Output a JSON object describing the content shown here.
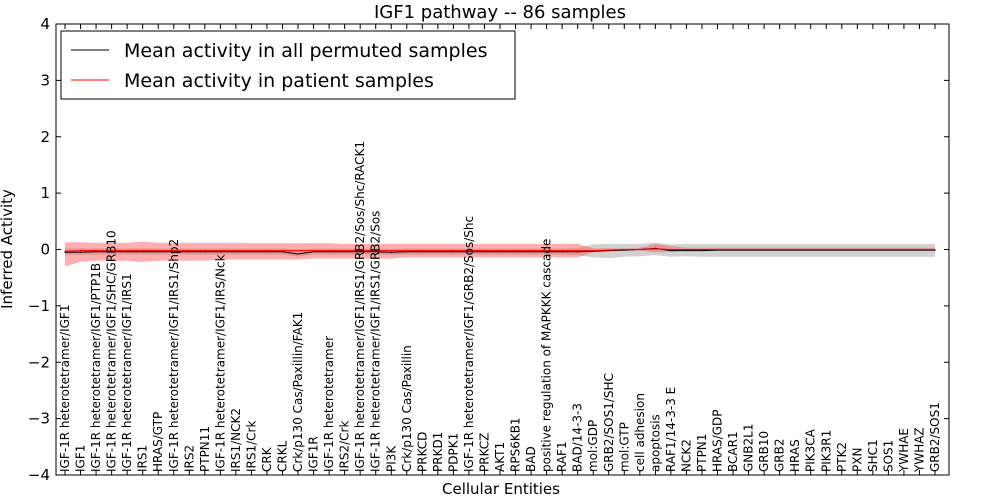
{
  "chart_data": {
    "type": "line",
    "title": "IGF1 pathway -- 86 samples",
    "xlabel": "Cellular Entities",
    "ylabel": "Inferred Activity",
    "ylim": [
      -4,
      4
    ],
    "yticks": [
      -4,
      -3,
      -2,
      -1,
      0,
      1,
      2,
      3,
      4
    ],
    "ytick_labels": [
      "−4",
      "−3",
      "−2",
      "−1",
      "0",
      "1",
      "2",
      "3",
      "4"
    ],
    "legend": {
      "position": "top-left",
      "entries": [
        {
          "label": "Mean activity in all permuted samples",
          "color": "#000000"
        },
        {
          "label": "Mean activity in patient samples",
          "color": "#ff0000"
        }
      ]
    },
    "categories": [
      "IGF-1R heterotetramer/IGF1",
      "IGF1",
      "IGF-1R heterotetramer/IGF1/PTP1B",
      "IGF-1R heterotetramer/IGF1/SHC/GRB10",
      "IGF-1R heterotetramer/IGF1/IRS1",
      "IRS1",
      "HRAS/GTP",
      "IGF-1R heterotetramer/IGF1/IRS1/Shp2",
      "IRS2",
      "PTPN11",
      "IGF-1R heterotetramer/IGF1/IRS/Nck",
      "IRS1/NCK2",
      "IRS1/Crk",
      "CRK",
      "CRKL",
      "Crk/p130 Cas/Paxillin/FAK1",
      "IGF1R",
      "IGF-1R heterotetramer",
      "IRS2/Crk",
      "IGF-1R heterotetramer/IGF1/IRS1/GRB2/Sos/Shc/RACK1",
      "IGF-1R heterotetramer/IGF1/IRS1/GRB2/Sos",
      "PI3K",
      "Crk/p130 Cas/Paxillin",
      "PRKCD",
      "PRKD1",
      "PDPK1",
      "IGF-1R heterotetramer/IGF1/GRB2/Sos/Shc",
      "PRKCZ",
      "AKT1",
      "RPS6KB1",
      "BAD",
      "positive regulation of MAPKKK cascade",
      "RAF1",
      "BAD/14-3-3",
      "mol:GDP",
      "GRB2/SOS1/SHC",
      "mol:GTP",
      "cell adhesion",
      "apoptosis",
      "RAF1/14-3-3 E",
      "NCK2",
      "PTPN1",
      "HRAS/GDP",
      "BCAR1",
      "GNB2L1",
      "GRB10",
      "GRB2",
      "HRAS",
      "PIK3CA",
      "PIK3R1",
      "PTK2",
      "PXN",
      "SHC1",
      "SOS1",
      "YWHAE",
      "YWHAZ",
      "GRB2/SOS1"
    ],
    "series": [
      {
        "name": "Mean activity in all permuted samples",
        "color": "#000000",
        "values": [
          -0.05,
          -0.05,
          -0.04,
          -0.04,
          -0.04,
          -0.04,
          -0.04,
          -0.04,
          -0.04,
          -0.04,
          -0.04,
          -0.04,
          -0.04,
          -0.04,
          -0.04,
          -0.08,
          -0.04,
          -0.04,
          -0.04,
          -0.04,
          -0.04,
          -0.05,
          -0.04,
          -0.04,
          -0.04,
          -0.04,
          -0.04,
          -0.04,
          -0.04,
          -0.04,
          -0.04,
          -0.04,
          -0.04,
          -0.04,
          -0.03,
          -0.02,
          -0.01,
          0.0,
          0.02,
          -0.02,
          -0.02,
          -0.02,
          -0.01,
          -0.01,
          -0.01,
          -0.01,
          -0.01,
          -0.01,
          -0.01,
          -0.01,
          -0.01,
          -0.01,
          -0.01,
          -0.01,
          -0.01,
          -0.01,
          -0.01
        ],
        "band_low": [
          -0.1,
          -0.1,
          -0.09,
          -0.09,
          -0.09,
          -0.09,
          -0.09,
          -0.09,
          -0.09,
          -0.09,
          -0.09,
          -0.09,
          -0.09,
          -0.09,
          -0.09,
          -0.13,
          -0.09,
          -0.09,
          -0.09,
          -0.09,
          -0.09,
          -0.1,
          -0.09,
          -0.09,
          -0.09,
          -0.09,
          -0.09,
          -0.09,
          -0.09,
          -0.09,
          -0.09,
          -0.09,
          -0.09,
          -0.1,
          -0.14,
          -0.15,
          -0.13,
          -0.12,
          -0.1,
          -0.13,
          -0.12,
          -0.13,
          -0.13,
          -0.13,
          -0.13,
          -0.13,
          -0.13,
          -0.13,
          -0.13,
          -0.13,
          -0.13,
          -0.13,
          -0.13,
          -0.13,
          -0.13,
          -0.13,
          -0.13
        ],
        "band_high": [
          0.02,
          0.02,
          0.02,
          0.02,
          0.02,
          0.02,
          0.02,
          0.02,
          0.02,
          0.02,
          0.02,
          0.02,
          0.02,
          0.02,
          0.02,
          0.0,
          0.02,
          0.02,
          0.02,
          0.02,
          0.02,
          0.01,
          0.02,
          0.02,
          0.02,
          0.02,
          0.02,
          0.02,
          0.02,
          0.02,
          0.02,
          0.02,
          0.02,
          0.03,
          0.09,
          0.1,
          0.1,
          0.1,
          0.12,
          0.09,
          0.1,
          0.1,
          0.1,
          0.1,
          0.1,
          0.1,
          0.1,
          0.1,
          0.1,
          0.1,
          0.1,
          0.1,
          0.1,
          0.1,
          0.1,
          0.1,
          0.1
        ]
      },
      {
        "name": "Mean activity in patient samples",
        "color": "#ff0000",
        "values": [
          -0.03,
          -0.02,
          -0.02,
          -0.02,
          -0.02,
          -0.02,
          -0.02,
          -0.02,
          -0.02,
          -0.02,
          -0.02,
          -0.02,
          -0.02,
          -0.02,
          -0.02,
          -0.02,
          -0.02,
          -0.02,
          -0.02,
          -0.02,
          -0.02,
          -0.02,
          -0.02,
          -0.02,
          -0.02,
          -0.02,
          -0.02,
          -0.02,
          -0.02,
          -0.02,
          -0.02,
          -0.02,
          -0.02,
          -0.02,
          -0.02,
          -0.01,
          0.0,
          0.0,
          0.01,
          0.0,
          0.0,
          0.0,
          0.0,
          0.0,
          0.0,
          0.0,
          0.0,
          0.0,
          0.0,
          0.0,
          0.0,
          0.0,
          0.0,
          0.0,
          0.0,
          0.0,
          0.0
        ],
        "band_low": [
          -0.3,
          -0.22,
          -0.2,
          -0.2,
          -0.2,
          -0.22,
          -0.2,
          -0.2,
          -0.2,
          -0.2,
          -0.18,
          -0.18,
          -0.18,
          -0.18,
          -0.18,
          -0.18,
          -0.16,
          -0.16,
          -0.16,
          -0.16,
          -0.16,
          -0.16,
          -0.14,
          -0.14,
          -0.14,
          -0.14,
          -0.14,
          -0.14,
          -0.14,
          -0.14,
          -0.14,
          -0.14,
          -0.14,
          -0.14,
          -0.05,
          -0.03,
          -0.02,
          -0.02,
          -0.05,
          -0.04,
          -0.02,
          -0.02,
          -0.02,
          -0.02,
          -0.02,
          -0.02,
          -0.02,
          -0.02,
          -0.02,
          -0.02,
          -0.02,
          -0.02,
          -0.02,
          -0.02,
          -0.02,
          -0.02,
          -0.02
        ],
        "band_high": [
          0.13,
          0.13,
          0.12,
          0.12,
          0.12,
          0.14,
          0.12,
          0.12,
          0.12,
          0.12,
          0.12,
          0.12,
          0.11,
          0.11,
          0.11,
          0.11,
          0.11,
          0.11,
          0.1,
          0.1,
          0.1,
          0.1,
          0.1,
          0.1,
          0.1,
          0.1,
          0.1,
          0.1,
          0.1,
          0.1,
          0.1,
          0.1,
          0.1,
          0.1,
          0.02,
          0.02,
          0.02,
          0.03,
          0.1,
          0.06,
          0.03,
          0.03,
          0.03,
          0.03,
          0.03,
          0.03,
          0.03,
          0.03,
          0.03,
          0.03,
          0.03,
          0.03,
          0.03,
          0.03,
          0.03,
          0.03,
          0.03
        ]
      }
    ]
  }
}
